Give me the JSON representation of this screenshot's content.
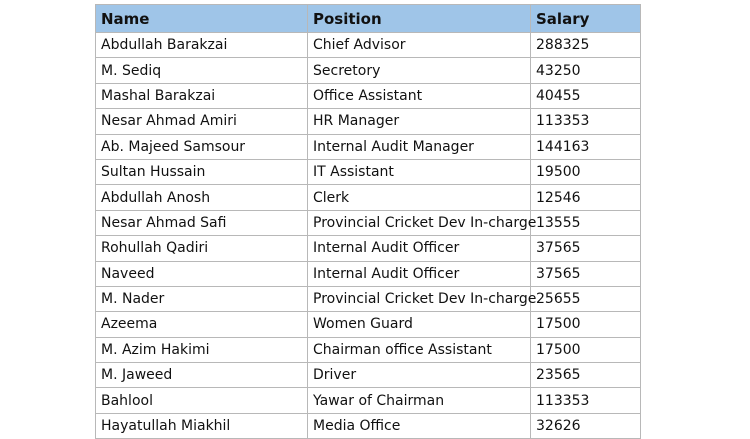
{
  "table": {
    "header": [
      "Name",
      "Position",
      "Salary"
    ],
    "rows": [
      [
        "Abdullah Barakzai",
        "Chief Advisor",
        288325
      ],
      [
        "M. Sediq",
        "Secretory",
        43250
      ],
      [
        "Mashal Barakzai",
        "Office Assistant",
        40455
      ],
      [
        "Nesar Ahmad Amiri",
        "HR Manager",
        113353
      ],
      [
        "Ab. Majeed Samsour",
        "Internal Audit Manager",
        144163
      ],
      [
        "Sultan Hussain",
        "IT Assistant",
        19500
      ],
      [
        "Abdullah Anosh",
        "Clerk",
        12546
      ],
      [
        "Nesar Ahmad Safi",
        "Provincial Cricket Dev In-charge",
        13555
      ],
      [
        "Rohullah Qadiri",
        "Internal Audit Officer",
        37565
      ],
      [
        "Naveed",
        "Internal Audit Officer",
        37565
      ],
      [
        "M. Nader",
        "Provincial Cricket Dev In-charge",
        25655
      ],
      [
        "Azeema",
        "Women Guard",
        17500
      ],
      [
        "M. Azim Hakimi",
        "Chairman office Assistant",
        17500
      ],
      [
        "M. Jaweed",
        "Driver",
        23565
      ],
      [
        "Bahlool",
        "Yawar of Chairman",
        113353
      ],
      [
        "Hayatullah Miakhil",
        "Media Office",
        32626
      ]
    ]
  }
}
